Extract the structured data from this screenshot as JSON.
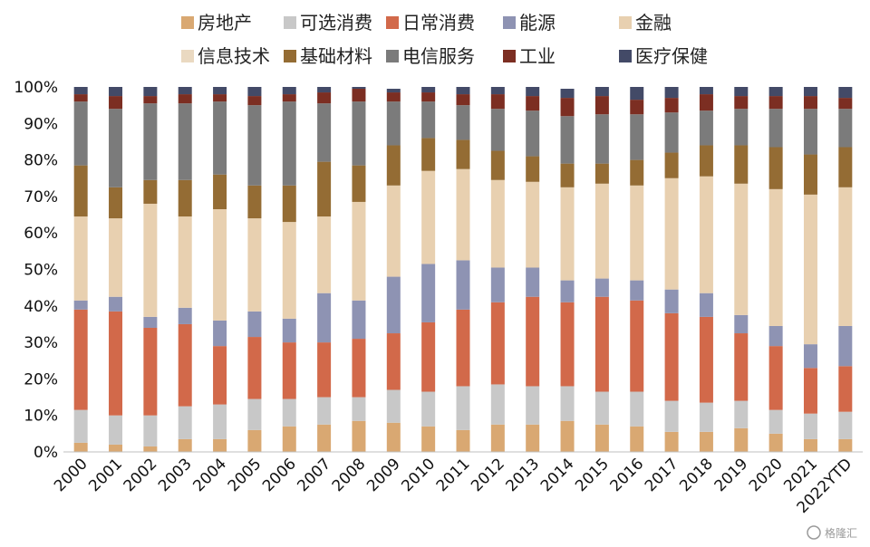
{
  "chart_data": {
    "type": "bar",
    "stacked": true,
    "title": "",
    "xlabel": "",
    "ylabel": "",
    "ylim": [
      0,
      100
    ],
    "y_ticks": [
      "0%",
      "10%",
      "20%",
      "30%",
      "40%",
      "50%",
      "60%",
      "70%",
      "80%",
      "90%",
      "100%"
    ],
    "grid": false,
    "legend_position": "top",
    "categories": [
      "2000",
      "2001",
      "2002",
      "2003",
      "2004",
      "2005",
      "2006",
      "2007",
      "2008",
      "2009",
      "2010",
      "2011",
      "2012",
      "2013",
      "2014",
      "2015",
      "2016",
      "2017",
      "2018",
      "2019",
      "2020",
      "2021",
      "2022YTD"
    ],
    "series": [
      {
        "name": "房地产",
        "color": "#d9a872",
        "values": [
          2.5,
          2,
          1.5,
          3.5,
          3.5,
          6,
          7,
          7.5,
          8.5,
          8,
          7,
          6,
          7.5,
          7.5,
          8.5,
          7.5,
          7,
          5.5,
          5.5,
          6.5,
          5,
          3.5,
          3.5
        ]
      },
      {
        "name": "可选消费",
        "color": "#c8c8c8",
        "values": [
          9,
          8,
          8.5,
          9,
          9.5,
          8.5,
          7.5,
          7.5,
          6.5,
          9,
          9.5,
          12,
          11,
          10.5,
          9.5,
          9,
          9.5,
          8.5,
          8,
          7.5,
          6.5,
          7,
          7.5
        ]
      },
      {
        "name": "日常消费",
        "color": "#d2694a",
        "values": [
          27.5,
          28.5,
          24,
          22.5,
          16,
          17,
          15.5,
          15,
          16,
          15.5,
          19,
          21,
          22.5,
          24.5,
          23,
          26,
          25,
          24,
          23.5,
          18.5,
          17.5,
          12.5,
          12.5
        ]
      },
      {
        "name": "能源",
        "color": "#8e93b3",
        "values": [
          2.5,
          4,
          3,
          4.5,
          7,
          7,
          6.5,
          13.5,
          10.5,
          15.5,
          16,
          13.5,
          9.5,
          8,
          6,
          5,
          5.5,
          6.5,
          6.5,
          5,
          5.5,
          6.5,
          11
        ]
      },
      {
        "name": "金融",
        "color": "#e8d0b0",
        "values": [
          23,
          21.5,
          31,
          25,
          30.5,
          25.5,
          26.5,
          21,
          27,
          25,
          25.5,
          25,
          24,
          23.5,
          25.5,
          26,
          26,
          30.5,
          32,
          36,
          37.5,
          41,
          38
        ]
      },
      {
        "name": "信息技术",
        "color": "#ead9c1",
        "values": [
          0,
          0,
          0,
          0,
          0,
          0,
          0,
          0,
          0,
          0,
          0,
          0,
          0,
          0,
          0,
          0,
          0,
          0,
          0,
          0,
          0,
          0,
          0
        ]
      },
      {
        "name": "基础材料",
        "color": "#946c34",
        "values": [
          14,
          8.5,
          6.5,
          10,
          9.5,
          9,
          10,
          15,
          10,
          11,
          9,
          8,
          8,
          7,
          6.5,
          5.5,
          7,
          7,
          8.5,
          10.5,
          11.5,
          11,
          11
        ]
      },
      {
        "name": "电信服务",
        "color": "#7b7b7b",
        "values": [
          17.5,
          21.5,
          21,
          21,
          20,
          22,
          23,
          16,
          17.5,
          12,
          10,
          9.5,
          11.5,
          12.5,
          13,
          13.5,
          12.5,
          11,
          9.5,
          10,
          10.5,
          12.5,
          10.5
        ]
      },
      {
        "name": "工业",
        "color": "#7c2e22",
        "values": [
          2,
          3.5,
          2,
          2.5,
          2,
          2.5,
          2,
          3,
          3.5,
          2.5,
          2.5,
          3,
          4,
          4,
          5,
          5,
          4,
          4,
          4.5,
          3.5,
          3.5,
          3.5,
          3
        ]
      },
      {
        "name": "医疗保健",
        "color": "#434a67",
        "values": [
          2,
          2.5,
          2.5,
          2,
          2,
          2.5,
          2,
          1.5,
          0.5,
          1,
          1.5,
          2,
          2,
          2.5,
          2.5,
          2.5,
          3.5,
          3,
          2,
          2.5,
          2.5,
          2.5,
          3
        ]
      }
    ]
  },
  "watermark": "格隆汇"
}
